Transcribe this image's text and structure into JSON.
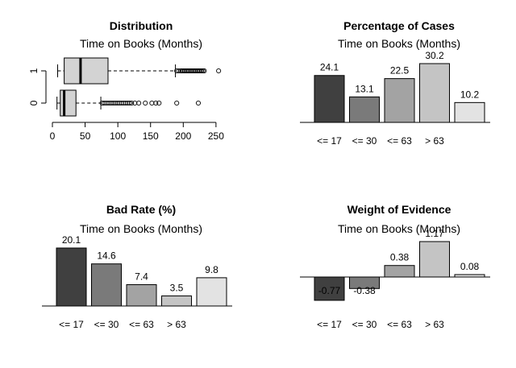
{
  "colors": {
    "bar_fills": [
      "#404040",
      "#7a7a7a",
      "#a3a3a3",
      "#c4c4c4",
      "#e3e3e3"
    ],
    "box_fill": "#d3d3d3",
    "stroke": "#000000"
  },
  "chart_data": [
    {
      "type": "boxplot",
      "title": "Distribution",
      "subtitle": "Time on Books (Months)",
      "orientation": "horizontal",
      "xlim": [
        0,
        260
      ],
      "xticks": [
        0,
        50,
        100,
        150,
        200,
        250
      ],
      "groups": [
        {
          "label": "1",
          "min": 8,
          "q1": 18,
          "median": 43,
          "q3": 85,
          "whisker_high": 188,
          "outliers": [
            190,
            193,
            196,
            198,
            200,
            202,
            204,
            206,
            208,
            210,
            212,
            214,
            216,
            218,
            220,
            222,
            224,
            226,
            228,
            230,
            232,
            254
          ]
        },
        {
          "label": "0",
          "min": 7,
          "q1": 12,
          "median": 18,
          "q3": 36,
          "whisker_high": 74,
          "outliers": [
            76,
            79,
            82,
            85,
            88,
            91,
            94,
            97,
            100,
            103,
            106,
            109,
            112,
            115,
            118,
            121,
            126,
            132,
            142,
            152,
            158,
            163,
            190,
            223
          ]
        }
      ]
    },
    {
      "type": "bar",
      "title": "Percentage of Cases",
      "subtitle": "Time on Books (Months)",
      "categories": [
        "<= 17",
        "<= 30",
        "<= 63",
        "> 63",
        ""
      ],
      "values": [
        24.1,
        13.1,
        22.5,
        30.2,
        10.2
      ],
      "labels": [
        "24.1",
        "13.1",
        "22.5",
        "30.2",
        "10.2"
      ],
      "ylim": [
        0,
        30.2
      ]
    },
    {
      "type": "bar",
      "title": "Bad Rate (%)",
      "subtitle": "Time on Books (Months)",
      "categories": [
        "<= 17",
        "<= 30",
        "<= 63",
        "> 63",
        ""
      ],
      "values": [
        20.1,
        14.6,
        7.4,
        3.5,
        9.8
      ],
      "labels": [
        "20.1",
        "14.6",
        "7.4",
        "3.5",
        "9.8"
      ],
      "ylim": [
        0,
        20.1
      ]
    },
    {
      "type": "bar",
      "title": "Weight of Evidence",
      "subtitle": "Time on Books (Months)",
      "categories": [
        "<= 17",
        "<= 30",
        "<= 63",
        "> 63",
        ""
      ],
      "values": [
        -0.77,
        -0.38,
        0.38,
        1.17,
        0.08
      ],
      "labels": [
        "-0.77",
        "-0.38",
        "0.38",
        "1.17",
        "0.08"
      ],
      "ylim": [
        -0.77,
        1.17
      ]
    }
  ]
}
